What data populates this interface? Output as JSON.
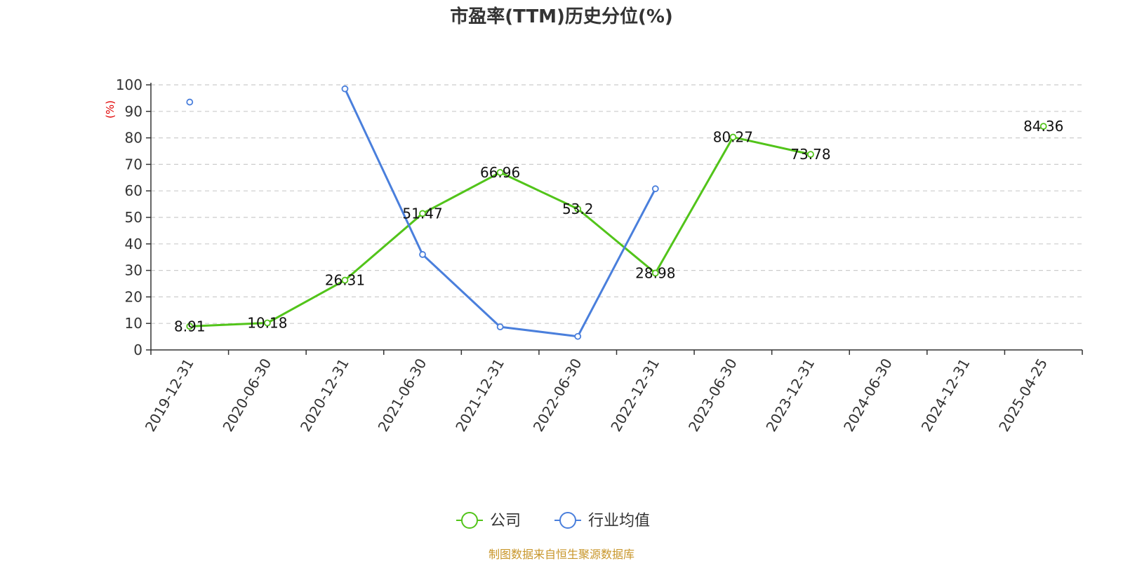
{
  "chart_data": {
    "type": "line",
    "title": "市盈率(TTM)历史分位(%)",
    "ylabel": "(%)",
    "ylim": [
      0,
      100
    ],
    "yticks": [
      "0",
      "10",
      "20",
      "30",
      "40",
      "50",
      "60",
      "70",
      "80",
      "90",
      "100"
    ],
    "categories": [
      "2019-12-31",
      "2020-06-30",
      "2020-12-31",
      "2021-06-30",
      "2021-12-31",
      "2022-06-30",
      "2022-12-31",
      "2023-06-30",
      "2023-12-31",
      "2024-06-30",
      "2024-12-31",
      "2025-04-25"
    ],
    "grid": true,
    "legend_position": "bottom-center",
    "series": [
      {
        "name": "公司",
        "color": "#52c41a",
        "show_labels": true,
        "values": [
          8.91,
          10.18,
          26.31,
          51.47,
          66.96,
          53.2,
          28.98,
          80.27,
          73.78,
          null,
          null,
          84.36
        ],
        "labels": [
          "8.91",
          "10.18",
          "26.31",
          "51.47",
          "66.96",
          "53.2",
          "28.98",
          "80.27",
          "73.78",
          null,
          null,
          "84.36"
        ]
      },
      {
        "name": "行业均值",
        "color": "#4a7fdc",
        "show_labels": false,
        "values": [
          93.5,
          null,
          98.5,
          36,
          8.7,
          5.1,
          60.8,
          null,
          null,
          null,
          null,
          null
        ]
      }
    ]
  },
  "source_text": "制图数据来自恒生聚源数据库",
  "colors": {
    "axis": "#333333",
    "grid": "#cccccc",
    "unit": "#e00000",
    "source": "#c8962a"
  }
}
